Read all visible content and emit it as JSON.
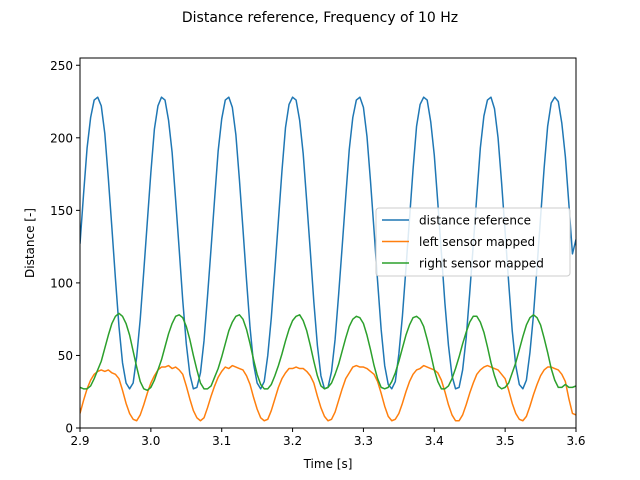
{
  "chart_data": {
    "type": "line",
    "title": "Distance reference, Frequency of 10 Hz",
    "xlabel": "Time [s]",
    "ylabel": "Distance [-]",
    "xlim": [
      2.9,
      3.6
    ],
    "ylim": [
      0,
      255
    ],
    "xticks": [
      2.9,
      3.0,
      3.1,
      3.2,
      3.3,
      3.4,
      3.5,
      3.6
    ],
    "xtick_labels": [
      "2.9",
      "3.0",
      "3.1",
      "3.2",
      "3.3",
      "3.4",
      "3.5",
      "3.6"
    ],
    "yticks": [
      0,
      50,
      100,
      150,
      200,
      250
    ],
    "ytick_labels": [
      "0",
      "50",
      "100",
      "150",
      "200",
      "250"
    ],
    "grid": false,
    "legend_position": "center-right",
    "series": [
      {
        "name": "distance reference",
        "color": "#1f77b4",
        "x": [
          2.9,
          2.905,
          2.91,
          2.915,
          2.92,
          2.925,
          2.93,
          2.935,
          2.94,
          2.945,
          2.95,
          2.955,
          2.96,
          2.965,
          2.97,
          2.975,
          2.98,
          2.985,
          2.99,
          2.995,
          3.0,
          3.005,
          3.01,
          3.015,
          3.02,
          3.025,
          3.03,
          3.035,
          3.04,
          3.045,
          3.05,
          3.055,
          3.06,
          3.065,
          3.07,
          3.075,
          3.08,
          3.085,
          3.09,
          3.095,
          3.1,
          3.105,
          3.11,
          3.115,
          3.12,
          3.125,
          3.13,
          3.135,
          3.14,
          3.145,
          3.15,
          3.155,
          3.16,
          3.165,
          3.17,
          3.175,
          3.18,
          3.185,
          3.19,
          3.195,
          3.2,
          3.205,
          3.21,
          3.215,
          3.22,
          3.225,
          3.23,
          3.235,
          3.24,
          3.245,
          3.25,
          3.255,
          3.26,
          3.265,
          3.27,
          3.275,
          3.28,
          3.285,
          3.29,
          3.295,
          3.3,
          3.305,
          3.31,
          3.315,
          3.32,
          3.325,
          3.33,
          3.335,
          3.34,
          3.345,
          3.35,
          3.355,
          3.36,
          3.365,
          3.37,
          3.375,
          3.38,
          3.385,
          3.39,
          3.395,
          3.4,
          3.405,
          3.41,
          3.415,
          3.42,
          3.425,
          3.43,
          3.435,
          3.44,
          3.445,
          3.45,
          3.455,
          3.46,
          3.465,
          3.47,
          3.475,
          3.48,
          3.485,
          3.49,
          3.495,
          3.5,
          3.505,
          3.51,
          3.515,
          3.52,
          3.525,
          3.53,
          3.535,
          3.54,
          3.545,
          3.55,
          3.555,
          3.56,
          3.565,
          3.57,
          3.575,
          3.58,
          3.585,
          3.59,
          3.595,
          3.6
        ],
        "y": [
          127,
          161,
          193,
          214,
          226,
          228,
          222,
          203,
          172,
          138,
          103,
          70,
          45,
          31,
          27,
          31,
          49,
          75,
          108,
          142,
          176,
          206,
          222,
          228,
          226,
          212,
          190,
          157,
          123,
          88,
          58,
          37,
          27,
          28,
          38,
          60,
          91,
          124,
          158,
          191,
          213,
          226,
          228,
          221,
          202,
          171,
          137,
          102,
          69,
          44,
          31,
          27,
          32,
          50,
          76,
          109,
          143,
          177,
          207,
          223,
          228,
          226,
          212,
          189,
          156,
          122,
          87,
          57,
          36,
          27,
          28,
          39,
          61,
          92,
          125,
          159,
          192,
          214,
          226,
          228,
          221,
          201,
          170,
          136,
          101,
          68,
          43,
          30,
          27,
          32,
          51,
          77,
          110,
          144,
          178,
          208,
          223,
          228,
          226,
          211,
          188,
          155,
          121,
          86,
          57,
          36,
          27,
          28,
          40,
          62,
          93,
          126,
          160,
          193,
          215,
          226,
          228,
          220,
          200,
          169,
          135,
          100,
          67,
          43,
          30,
          27,
          33,
          52,
          78,
          111,
          145,
          179,
          208,
          224,
          228,
          225,
          210,
          187,
          154,
          120,
          130
        ]
      },
      {
        "name": "left sensor mapped",
        "color": "#ff7f0e",
        "x": [
          2.9,
          2.905,
          2.91,
          2.915,
          2.92,
          2.925,
          2.93,
          2.935,
          2.94,
          2.945,
          2.95,
          2.955,
          2.96,
          2.965,
          2.97,
          2.975,
          2.98,
          2.985,
          2.99,
          2.995,
          3.0,
          3.005,
          3.01,
          3.015,
          3.02,
          3.025,
          3.03,
          3.035,
          3.04,
          3.045,
          3.05,
          3.055,
          3.06,
          3.065,
          3.07,
          3.075,
          3.08,
          3.085,
          3.09,
          3.095,
          3.1,
          3.105,
          3.11,
          3.115,
          3.12,
          3.125,
          3.13,
          3.135,
          3.14,
          3.145,
          3.15,
          3.155,
          3.16,
          3.165,
          3.17,
          3.175,
          3.18,
          3.185,
          3.19,
          3.195,
          3.2,
          3.205,
          3.21,
          3.215,
          3.22,
          3.225,
          3.23,
          3.235,
          3.24,
          3.245,
          3.25,
          3.255,
          3.26,
          3.265,
          3.27,
          3.275,
          3.28,
          3.285,
          3.29,
          3.295,
          3.3,
          3.305,
          3.31,
          3.315,
          3.32,
          3.325,
          3.33,
          3.335,
          3.34,
          3.345,
          3.35,
          3.355,
          3.36,
          3.365,
          3.37,
          3.375,
          3.38,
          3.385,
          3.39,
          3.395,
          3.4,
          3.405,
          3.41,
          3.415,
          3.42,
          3.425,
          3.43,
          3.435,
          3.44,
          3.445,
          3.45,
          3.455,
          3.46,
          3.465,
          3.47,
          3.475,
          3.48,
          3.485,
          3.49,
          3.495,
          3.5,
          3.505,
          3.51,
          3.515,
          3.52,
          3.525,
          3.53,
          3.535,
          3.54,
          3.545,
          3.55,
          3.555,
          3.56,
          3.565,
          3.57,
          3.575,
          3.58,
          3.585,
          3.59,
          3.595,
          3.6
        ],
        "y": [
          10,
          19,
          27,
          33,
          37,
          39,
          40,
          39,
          40,
          38,
          37,
          34,
          26,
          17,
          10,
          6,
          5,
          9,
          16,
          24,
          31,
          36,
          40,
          42,
          42,
          43,
          41,
          42,
          40,
          37,
          29,
          20,
          12,
          7,
          5,
          7,
          14,
          22,
          29,
          35,
          39,
          42,
          41,
          43,
          42,
          41,
          40,
          36,
          30,
          21,
          13,
          7,
          5,
          6,
          12,
          20,
          28,
          34,
          38,
          41,
          41,
          42,
          41,
          41,
          39,
          36,
          31,
          22,
          14,
          8,
          5,
          6,
          11,
          19,
          27,
          34,
          38,
          42,
          43,
          42,
          42,
          41,
          39,
          37,
          32,
          24,
          15,
          8,
          5,
          6,
          10,
          17,
          25,
          32,
          37,
          40,
          41,
          43,
          42,
          41,
          40,
          38,
          33,
          25,
          16,
          9,
          5,
          5,
          9,
          16,
          24,
          31,
          37,
          40,
          42,
          43,
          42,
          41,
          40,
          37,
          34,
          26,
          17,
          10,
          6,
          5,
          8,
          15,
          23,
          30,
          36,
          40,
          42,
          42,
          41,
          40,
          37,
          32,
          20,
          10,
          9
        ]
      },
      {
        "name": "right sensor mapped",
        "color": "#2ca02c",
        "x": [
          2.9,
          2.905,
          2.91,
          2.915,
          2.92,
          2.925,
          2.93,
          2.935,
          2.94,
          2.945,
          2.95,
          2.955,
          2.96,
          2.965,
          2.97,
          2.975,
          2.98,
          2.985,
          2.99,
          2.995,
          3.0,
          3.005,
          3.01,
          3.015,
          3.02,
          3.025,
          3.03,
          3.035,
          3.04,
          3.045,
          3.05,
          3.055,
          3.06,
          3.065,
          3.07,
          3.075,
          3.08,
          3.085,
          3.09,
          3.095,
          3.1,
          3.105,
          3.11,
          3.115,
          3.12,
          3.125,
          3.13,
          3.135,
          3.14,
          3.145,
          3.15,
          3.155,
          3.16,
          3.165,
          3.17,
          3.175,
          3.18,
          3.185,
          3.19,
          3.195,
          3.2,
          3.205,
          3.21,
          3.215,
          3.22,
          3.225,
          3.23,
          3.235,
          3.24,
          3.245,
          3.25,
          3.255,
          3.26,
          3.265,
          3.27,
          3.275,
          3.28,
          3.285,
          3.29,
          3.295,
          3.3,
          3.305,
          3.31,
          3.315,
          3.32,
          3.325,
          3.33,
          3.335,
          3.34,
          3.345,
          3.35,
          3.355,
          3.36,
          3.365,
          3.37,
          3.375,
          3.38,
          3.385,
          3.39,
          3.395,
          3.4,
          3.405,
          3.41,
          3.415,
          3.42,
          3.425,
          3.43,
          3.435,
          3.44,
          3.445,
          3.45,
          3.455,
          3.46,
          3.465,
          3.47,
          3.475,
          3.48,
          3.485,
          3.49,
          3.495,
          3.5,
          3.505,
          3.51,
          3.515,
          3.52,
          3.525,
          3.53,
          3.535,
          3.54,
          3.545,
          3.55,
          3.555,
          3.56,
          3.565,
          3.57,
          3.575,
          3.58,
          3.585,
          3.59,
          3.595,
          3.6
        ],
        "y": [
          28,
          27,
          27,
          29,
          34,
          40,
          46,
          55,
          64,
          72,
          77,
          79,
          77,
          72,
          64,
          53,
          42,
          32,
          27,
          26,
          28,
          33,
          40,
          47,
          56,
          65,
          72,
          77,
          78,
          76,
          70,
          61,
          50,
          40,
          31,
          27,
          27,
          29,
          35,
          41,
          49,
          58,
          67,
          73,
          77,
          78,
          75,
          68,
          58,
          47,
          37,
          30,
          27,
          27,
          30,
          36,
          43,
          51,
          60,
          68,
          74,
          77,
          78,
          74,
          67,
          57,
          46,
          36,
          29,
          27,
          28,
          31,
          37,
          44,
          53,
          62,
          70,
          75,
          77,
          76,
          72,
          64,
          54,
          43,
          34,
          28,
          27,
          28,
          32,
          38,
          46,
          55,
          64,
          71,
          76,
          77,
          75,
          70,
          61,
          51,
          40,
          32,
          27,
          27,
          29,
          34,
          41,
          49,
          58,
          66,
          73,
          77,
          77,
          73,
          66,
          56,
          45,
          36,
          29,
          27,
          28,
          31,
          38,
          45,
          54,
          63,
          71,
          76,
          78,
          76,
          71,
          62,
          52,
          41,
          33,
          28,
          28,
          30,
          28,
          28,
          29
        ]
      }
    ]
  }
}
